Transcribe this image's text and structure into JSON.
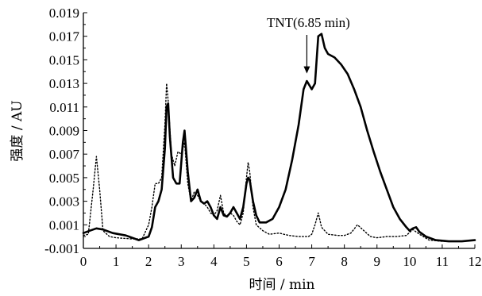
{
  "chart_data": {
    "type": "line",
    "xlabel": "时间 / min",
    "ylabel": "强度 / AU",
    "xlim": [
      0,
      12
    ],
    "ylim": [
      -0.001,
      0.019
    ],
    "x_ticks": [
      "0",
      "1",
      "2",
      "3",
      "4",
      "5",
      "6",
      "7",
      "8",
      "9",
      "10",
      "11",
      "12"
    ],
    "y_ticks": [
      "-0.001",
      "0.001",
      "0.003",
      "0.005",
      "0.007",
      "0.009",
      "0.011",
      "0.013",
      "0.015",
      "0.017",
      "0.019"
    ],
    "grid": false,
    "annotations": [
      {
        "text": "TNT(6.85 min)",
        "x": 6.85,
        "y": 0.0133,
        "arrow": true
      }
    ],
    "series": [
      {
        "style": "solid",
        "x": [
          0,
          0.2,
          0.4,
          0.6,
          0.9,
          1.3,
          1.7,
          2.0,
          2.1,
          2.2,
          2.3,
          2.4,
          2.5,
          2.55,
          2.6,
          2.65,
          2.75,
          2.85,
          2.95,
          3.05,
          3.1,
          3.2,
          3.3,
          3.4,
          3.5,
          3.6,
          3.7,
          3.8,
          3.9,
          4.0,
          4.1,
          4.2,
          4.3,
          4.4,
          4.5,
          4.6,
          4.7,
          4.8,
          4.9,
          5.0,
          5.05,
          5.1,
          5.2,
          5.3,
          5.4,
          5.6,
          5.8,
          6.0,
          6.2,
          6.4,
          6.6,
          6.75,
          6.85,
          7.0,
          7.1,
          7.2,
          7.3,
          7.4,
          7.5,
          7.7,
          7.9,
          8.1,
          8.3,
          8.5,
          8.7,
          8.9,
          9.1,
          9.3,
          9.5,
          9.7,
          9.9,
          10.0,
          10.1,
          10.2,
          10.3,
          10.5,
          10.8,
          11.2,
          11.6,
          12.0
        ],
        "y": [
          0.0003,
          0.0005,
          0.0007,
          0.0006,
          0.0003,
          0.0001,
          -0.0003,
          0.0,
          0.0008,
          0.0025,
          0.003,
          0.004,
          0.0075,
          0.011,
          0.0113,
          0.0085,
          0.005,
          0.0045,
          0.0045,
          0.008,
          0.009,
          0.0055,
          0.003,
          0.0033,
          0.004,
          0.003,
          0.0028,
          0.003,
          0.0025,
          0.0018,
          0.0015,
          0.0025,
          0.0018,
          0.0017,
          0.002,
          0.0025,
          0.002,
          0.0015,
          0.0025,
          0.0045,
          0.005,
          0.0048,
          0.003,
          0.0018,
          0.0012,
          0.0012,
          0.0015,
          0.0025,
          0.004,
          0.0065,
          0.0095,
          0.0125,
          0.0132,
          0.0125,
          0.013,
          0.017,
          0.0172,
          0.016,
          0.0155,
          0.0152,
          0.0146,
          0.0138,
          0.0125,
          0.011,
          0.009,
          0.0072,
          0.0055,
          0.004,
          0.0025,
          0.0015,
          0.0008,
          0.0005,
          0.0007,
          0.0008,
          0.0004,
          0.0,
          -0.0003,
          -0.0004,
          -0.0004,
          -0.0003
        ]
      },
      {
        "style": "dotted",
        "x": [
          0,
          0.15,
          0.3,
          0.4,
          0.5,
          0.6,
          0.8,
          1.0,
          1.5,
          1.8,
          2.0,
          2.1,
          2.2,
          2.3,
          2.4,
          2.5,
          2.55,
          2.6,
          2.7,
          2.8,
          2.9,
          3.0,
          3.1,
          3.2,
          3.3,
          3.4,
          3.5,
          3.6,
          3.7,
          3.8,
          3.9,
          4.0,
          4.1,
          4.2,
          4.3,
          4.4,
          4.5,
          4.6,
          4.7,
          4.8,
          4.9,
          5.0,
          5.05,
          5.1,
          5.2,
          5.3,
          5.5,
          5.7,
          6.0,
          6.3,
          6.6,
          6.9,
          7.0,
          7.1,
          7.2,
          7.3,
          7.5,
          7.8,
          8.0,
          8.2,
          8.4,
          8.6,
          8.8,
          9.0,
          9.3,
          9.6,
          9.9,
          10.1,
          10.3,
          10.6,
          11.0,
          11.5,
          12.0
        ],
        "y": [
          0.0001,
          0.0002,
          0.004,
          0.0068,
          0.004,
          0.0005,
          0.0,
          -0.0001,
          -0.0002,
          -0.0002,
          0.001,
          0.0025,
          0.0045,
          0.0045,
          0.005,
          0.0095,
          0.013,
          0.0115,
          0.007,
          0.006,
          0.0072,
          0.007,
          0.008,
          0.0045,
          0.003,
          0.0038,
          0.0035,
          0.003,
          0.0028,
          0.0025,
          0.002,
          0.0018,
          0.0022,
          0.0035,
          0.002,
          0.0017,
          0.002,
          0.0018,
          0.0013,
          0.001,
          0.002,
          0.005,
          0.0063,
          0.0055,
          0.0025,
          0.001,
          0.0005,
          0.0002,
          0.0003,
          0.0001,
          0.0,
          0.0,
          0.0002,
          0.001,
          0.002,
          0.0008,
          0.0002,
          0.0001,
          0.0001,
          0.0003,
          0.001,
          0.0005,
          0.0,
          -0.0001,
          0.0,
          0.0,
          0.0001,
          0.0006,
          0.0002,
          -0.0003,
          -0.0004,
          -0.0004,
          -0.0003
        ]
      }
    ]
  }
}
